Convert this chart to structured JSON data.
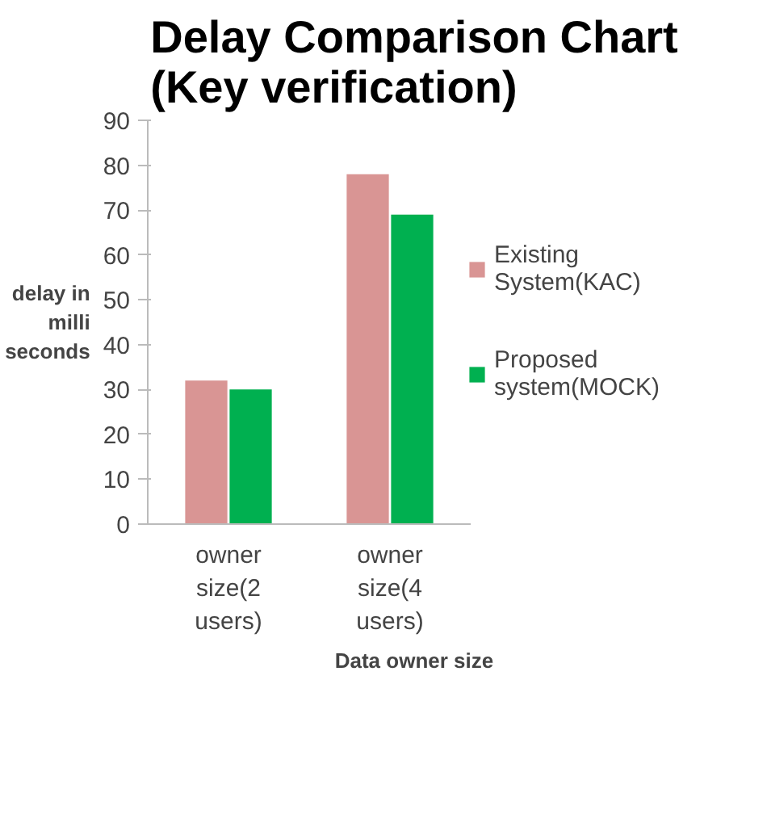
{
  "chart_data": {
    "type": "bar",
    "title": "Delay Comparison Chart\n(Key verification)",
    "xlabel": "Data owner size",
    "ylabel": "delay in\nmilli\nseconds",
    "categories": [
      "owner\nsize(2\nusers)",
      "owner\nsize(4\nusers)"
    ],
    "series": [
      {
        "name": "Existing\nSystem(KAC)",
        "color": "#d99594",
        "values": [
          32,
          78
        ]
      },
      {
        "name": "Proposed\nsystem(MOCK)",
        "color": "#00b050",
        "values": [
          30,
          69
        ]
      }
    ],
    "ylim": [
      0,
      90
    ],
    "yticks": [
      0,
      10,
      20,
      30,
      40,
      50,
      60,
      70,
      80,
      90
    ],
    "grid": false,
    "legend": "right"
  }
}
